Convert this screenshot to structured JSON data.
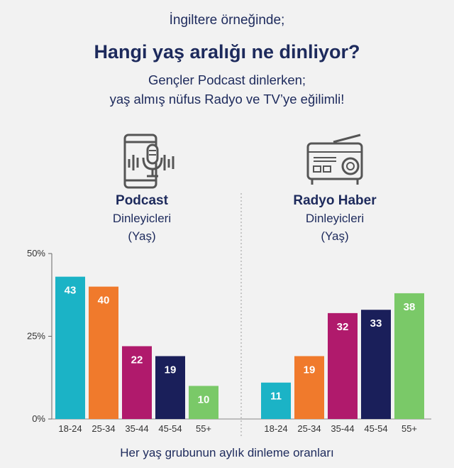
{
  "header": {
    "intro": "İngiltere örneğinde;",
    "title": "Hangi yaş aralığı ne dinliyor?",
    "subtitle_line1": "Gençler Podcast dinlerken;",
    "subtitle_line2": "yaş almış nüfus Radyo ve TV’ye eğilimli!"
  },
  "panels": {
    "podcast": {
      "title": "Podcast",
      "line1": "Dinleyicleri",
      "line2": "(Yaş)",
      "icon": "smartphone-microphone-icon"
    },
    "radio": {
      "title": "Radyo Haber",
      "line1": "Dinleyicleri",
      "line2": "(Yaş)",
      "icon": "radio-icon"
    }
  },
  "caption": "Her yaş grubunun aylık dinleme oranları",
  "chart_data": [
    {
      "type": "bar",
      "title": "Podcast",
      "categories": [
        "18-24",
        "25-34",
        "35-44",
        "45-54",
        "55+"
      ],
      "values": [
        43,
        40,
        22,
        19,
        10
      ],
      "colors": [
        "#1bb3c6",
        "#f07a2c",
        "#b01a6c",
        "#1a1f5a",
        "#7ac968"
      ],
      "ylim": [
        0,
        50
      ],
      "yticks": [
        "0%",
        "25%",
        "50%"
      ],
      "ytick_values": [
        0,
        25,
        50
      ],
      "xlabel": "Her yaş grubunun aylık dinleme oranları"
    },
    {
      "type": "bar",
      "title": "Radyo Haber",
      "categories": [
        "18-24",
        "25-34",
        "35-44",
        "45-54",
        "55+"
      ],
      "values": [
        11,
        19,
        32,
        33,
        38
      ],
      "colors": [
        "#1bb3c6",
        "#f07a2c",
        "#b01a6c",
        "#1a1f5a",
        "#7ac968"
      ],
      "ylim": [
        0,
        50
      ]
    }
  ]
}
